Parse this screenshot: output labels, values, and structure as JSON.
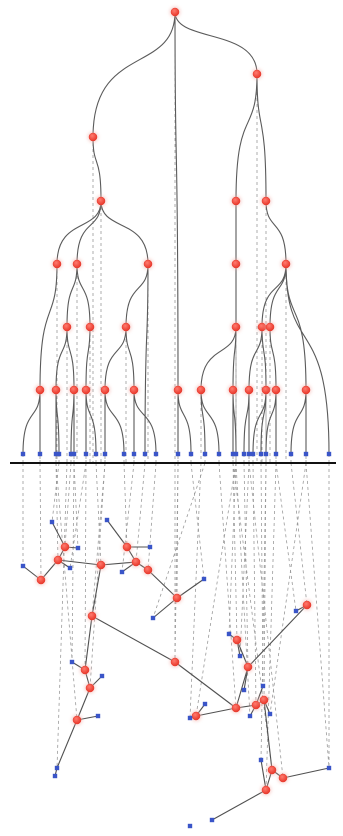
{
  "colors": {
    "internal_node": "#e8372a",
    "leaf_node": "#3a55c8",
    "tree_edge": "#5a5a5a",
    "projection_line": "#9a9a9a",
    "divider": "#111111"
  }
}
